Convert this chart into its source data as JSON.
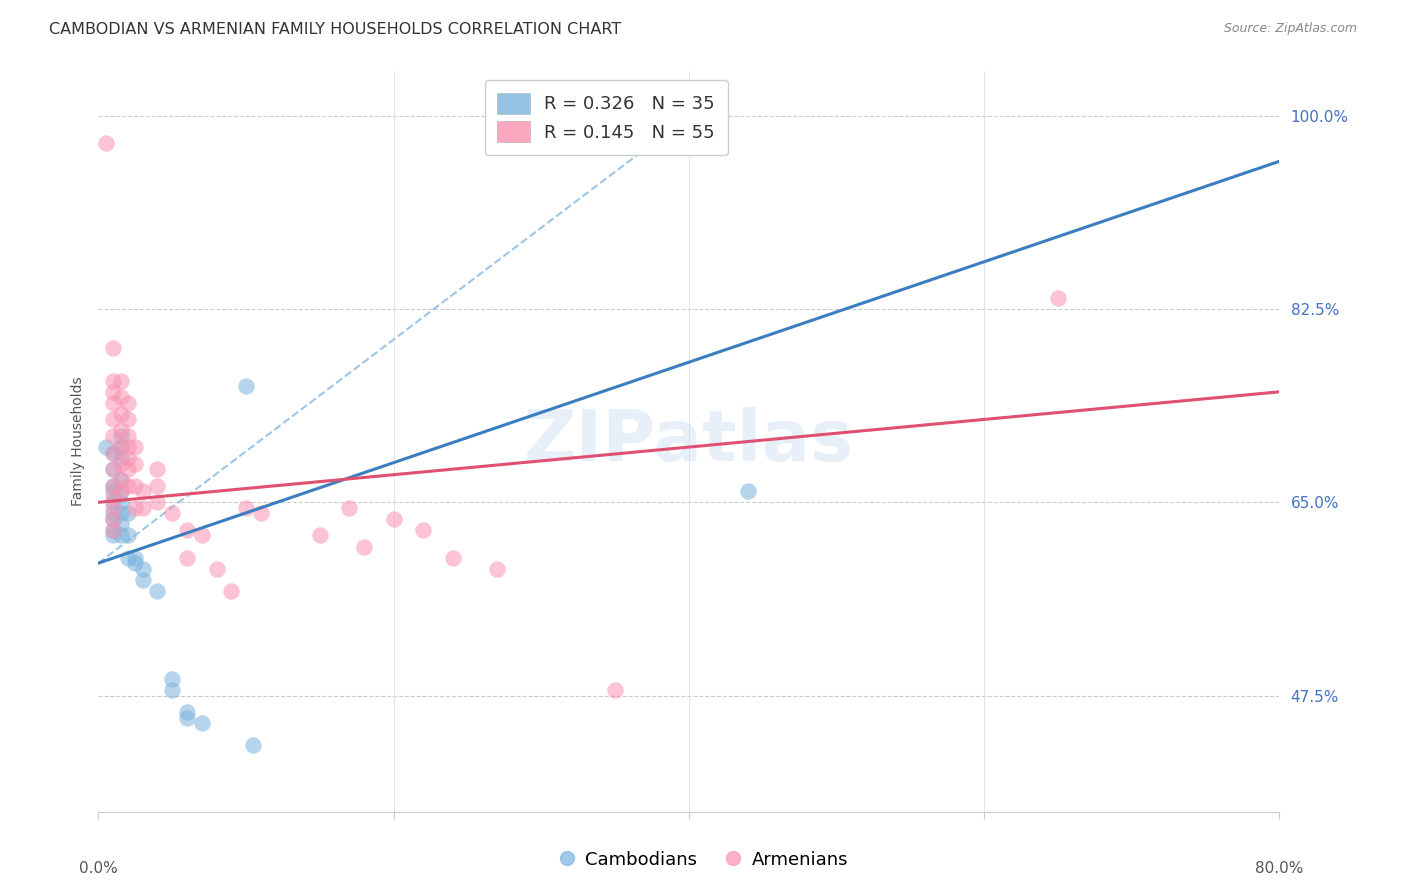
{
  "title": "CAMBODIAN VS ARMENIAN FAMILY HOUSEHOLDS CORRELATION CHART",
  "source": "Source: ZipAtlas.com",
  "ylabel": "Family Households",
  "yticks_pct": [
    47.5,
    65.0,
    82.5,
    100.0
  ],
  "ytick_labels": [
    "47.5%",
    "65.0%",
    "82.5%",
    "100.0%"
  ],
  "xmin": 0.0,
  "xmax": 0.8,
  "ymin": 0.37,
  "ymax": 1.04,
  "legend_R1": "R = 0.326",
  "legend_N1": "N = 35",
  "legend_R2": "R = 0.145",
  "legend_N2": "N = 55",
  "watermark": "ZIPatlas",
  "cambodian_color": "#7ab4de",
  "armenian_color": "#f892b0",
  "trend_cambodian_color": "#3a7ec0",
  "trend_armenian_color": "#e05070",
  "diagonal_color": "#7ab4de",
  "background_color": "#ffffff",
  "grid_color": "#cccccc",
  "ytick_color": "#4472c4",
  "title_color": "#333333",
  "source_color": "#888888",
  "ylabel_color": "#555555",
  "xtick_color": "#555555",
  "cambodian_points": [
    [
      0.005,
      0.7
    ],
    [
      0.01,
      0.695
    ],
    [
      0.01,
      0.68
    ],
    [
      0.01,
      0.665
    ],
    [
      0.01,
      0.66
    ],
    [
      0.01,
      0.65
    ],
    [
      0.01,
      0.64
    ],
    [
      0.01,
      0.635
    ],
    [
      0.01,
      0.625
    ],
    [
      0.01,
      0.62
    ],
    [
      0.015,
      0.71
    ],
    [
      0.015,
      0.7
    ],
    [
      0.015,
      0.69
    ],
    [
      0.015,
      0.67
    ],
    [
      0.015,
      0.66
    ],
    [
      0.015,
      0.65
    ],
    [
      0.015,
      0.64
    ],
    [
      0.015,
      0.63
    ],
    [
      0.015,
      0.62
    ],
    [
      0.02,
      0.64
    ],
    [
      0.02,
      0.62
    ],
    [
      0.02,
      0.6
    ],
    [
      0.025,
      0.6
    ],
    [
      0.025,
      0.595
    ],
    [
      0.03,
      0.59
    ],
    [
      0.03,
      0.58
    ],
    [
      0.04,
      0.57
    ],
    [
      0.05,
      0.49
    ],
    [
      0.05,
      0.48
    ],
    [
      0.06,
      0.46
    ],
    [
      0.06,
      0.455
    ],
    [
      0.07,
      0.45
    ],
    [
      0.1,
      0.755
    ],
    [
      0.105,
      0.43
    ],
    [
      0.44,
      0.66
    ]
  ],
  "armenian_points": [
    [
      0.005,
      0.975
    ],
    [
      0.01,
      0.79
    ],
    [
      0.01,
      0.76
    ],
    [
      0.01,
      0.75
    ],
    [
      0.01,
      0.74
    ],
    [
      0.01,
      0.725
    ],
    [
      0.01,
      0.71
    ],
    [
      0.01,
      0.695
    ],
    [
      0.01,
      0.68
    ],
    [
      0.01,
      0.665
    ],
    [
      0.01,
      0.655
    ],
    [
      0.01,
      0.645
    ],
    [
      0.01,
      0.635
    ],
    [
      0.01,
      0.625
    ],
    [
      0.015,
      0.76
    ],
    [
      0.015,
      0.745
    ],
    [
      0.015,
      0.73
    ],
    [
      0.015,
      0.715
    ],
    [
      0.015,
      0.7
    ],
    [
      0.015,
      0.685
    ],
    [
      0.015,
      0.67
    ],
    [
      0.015,
      0.66
    ],
    [
      0.02,
      0.74
    ],
    [
      0.02,
      0.725
    ],
    [
      0.02,
      0.71
    ],
    [
      0.02,
      0.7
    ],
    [
      0.02,
      0.69
    ],
    [
      0.02,
      0.68
    ],
    [
      0.02,
      0.665
    ],
    [
      0.025,
      0.7
    ],
    [
      0.025,
      0.685
    ],
    [
      0.025,
      0.665
    ],
    [
      0.025,
      0.645
    ],
    [
      0.03,
      0.66
    ],
    [
      0.03,
      0.645
    ],
    [
      0.04,
      0.68
    ],
    [
      0.04,
      0.665
    ],
    [
      0.04,
      0.65
    ],
    [
      0.05,
      0.64
    ],
    [
      0.06,
      0.625
    ],
    [
      0.06,
      0.6
    ],
    [
      0.07,
      0.62
    ],
    [
      0.08,
      0.59
    ],
    [
      0.09,
      0.57
    ],
    [
      0.1,
      0.645
    ],
    [
      0.11,
      0.64
    ],
    [
      0.15,
      0.62
    ],
    [
      0.17,
      0.645
    ],
    [
      0.18,
      0.61
    ],
    [
      0.2,
      0.635
    ],
    [
      0.22,
      0.625
    ],
    [
      0.24,
      0.6
    ],
    [
      0.27,
      0.59
    ],
    [
      0.35,
      0.48
    ],
    [
      0.65,
      0.835
    ]
  ],
  "title_fontsize": 11.5,
  "source_fontsize": 9,
  "axis_label_fontsize": 10,
  "tick_fontsize": 11,
  "legend_fontsize": 13,
  "watermark_fontsize": 52
}
